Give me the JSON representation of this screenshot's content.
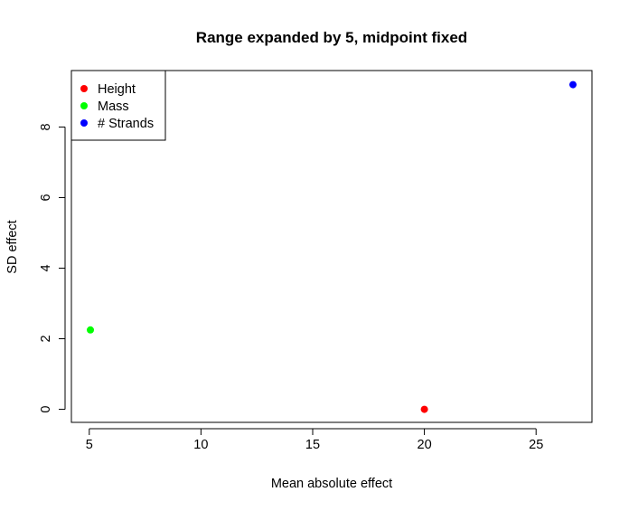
{
  "chart_data": {
    "type": "scatter",
    "title": "Range expanded by 5, midpoint fixed",
    "xlabel": "Mean absolute effect",
    "ylabel": "SD effect",
    "xlim": [
      4.2,
      27.5
    ],
    "ylim": [
      -0.37,
      9.6
    ],
    "xticks": [
      "5",
      "10",
      "15",
      "20",
      "25"
    ],
    "yticks": [
      "0",
      "2",
      "4",
      "6",
      "8"
    ],
    "legend_position": "top-left",
    "grid": false,
    "series": [
      {
        "name": "Height",
        "color": "#ff0000",
        "points": [
          {
            "x": 20.0,
            "y": 0.0
          }
        ]
      },
      {
        "name": "Mass",
        "color": "#00ff00",
        "points": [
          {
            "x": 5.05,
            "y": 2.25
          }
        ]
      },
      {
        "name": "# Strands",
        "color": "#0000ff",
        "points": [
          {
            "x": 26.65,
            "y": 9.2
          }
        ]
      }
    ]
  }
}
